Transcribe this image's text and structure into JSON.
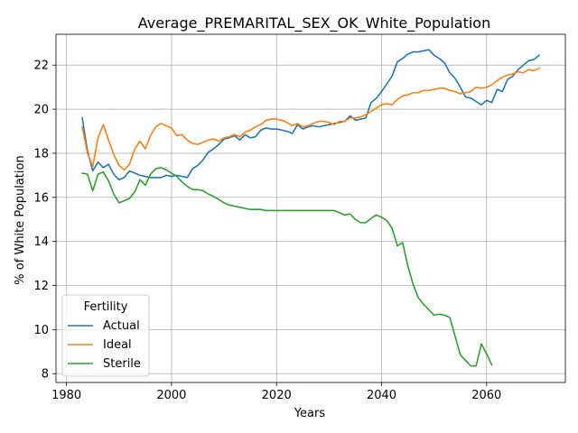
{
  "chart_data": {
    "type": "line",
    "title": "Average_PREMARITAL_SEX_OK_White_Population",
    "xlabel": "Years",
    "ylabel": "% of White Population",
    "xlim": [
      1978,
      2075
    ],
    "ylim": [
      7.6,
      23.4
    ],
    "xticks": [
      1980,
      2000,
      2020,
      2040,
      2060
    ],
    "yticks": [
      8,
      10,
      12,
      14,
      16,
      18,
      20,
      22
    ],
    "grid": true,
    "legend": {
      "title": "Fertility",
      "placement": "lower-left"
    },
    "series": [
      {
        "name": "Actual",
        "color": "#1f77b4",
        "points": [
          [
            1983,
            19.6
          ],
          [
            1984,
            18.1
          ],
          [
            1985,
            17.2
          ],
          [
            1986,
            17.6
          ],
          [
            1987,
            17.35
          ],
          [
            1988,
            17.5
          ],
          [
            1989,
            17.05
          ],
          [
            1990,
            16.8
          ],
          [
            1991,
            16.9
          ],
          [
            1992,
            17.2
          ],
          [
            1993,
            17.1
          ],
          [
            1994,
            17.0
          ],
          [
            1995,
            16.95
          ],
          [
            1996,
            16.9
          ],
          [
            1997,
            16.9
          ],
          [
            1998,
            16.9
          ],
          [
            1999,
            17.0
          ],
          [
            2000,
            16.95
          ],
          [
            2001,
            17.0
          ],
          [
            2002,
            16.95
          ],
          [
            2003,
            16.9
          ],
          [
            2004,
            17.3
          ],
          [
            2005,
            17.45
          ],
          [
            2006,
            17.7
          ],
          [
            2007,
            18.05
          ],
          [
            2008,
            18.2
          ],
          [
            2009,
            18.4
          ],
          [
            2010,
            18.65
          ],
          [
            2011,
            18.7
          ],
          [
            2012,
            18.8
          ],
          [
            2013,
            18.6
          ],
          [
            2014,
            18.85
          ],
          [
            2015,
            18.7
          ],
          [
            2016,
            18.75
          ],
          [
            2017,
            19.05
          ],
          [
            2018,
            19.15
          ],
          [
            2019,
            19.1
          ],
          [
            2020,
            19.1
          ],
          [
            2021,
            19.05
          ],
          [
            2022,
            19.0
          ],
          [
            2023,
            18.9
          ],
          [
            2024,
            19.3
          ],
          [
            2025,
            19.1
          ],
          [
            2026,
            19.2
          ],
          [
            2027,
            19.25
          ],
          [
            2028,
            19.2
          ],
          [
            2029,
            19.25
          ],
          [
            2030,
            19.3
          ],
          [
            2031,
            19.35
          ],
          [
            2032,
            19.4
          ],
          [
            2033,
            19.45
          ],
          [
            2034,
            19.7
          ],
          [
            2035,
            19.5
          ],
          [
            2036,
            19.55
          ],
          [
            2037,
            19.6
          ],
          [
            2038,
            20.3
          ],
          [
            2039,
            20.5
          ],
          [
            2040,
            20.8
          ],
          [
            2041,
            21.15
          ],
          [
            2042,
            21.5
          ],
          [
            2043,
            22.15
          ],
          [
            2044,
            22.3
          ],
          [
            2045,
            22.5
          ],
          [
            2046,
            22.6
          ],
          [
            2047,
            22.6
          ],
          [
            2048,
            22.65
          ],
          [
            2049,
            22.7
          ],
          [
            2050,
            22.45
          ],
          [
            2051,
            22.3
          ],
          [
            2052,
            22.1
          ],
          [
            2053,
            21.65
          ],
          [
            2054,
            21.4
          ],
          [
            2055,
            21.0
          ],
          [
            2056,
            20.55
          ],
          [
            2057,
            20.5
          ],
          [
            2058,
            20.35
          ],
          [
            2059,
            20.2
          ],
          [
            2060,
            20.4
          ],
          [
            2061,
            20.3
          ],
          [
            2062,
            20.9
          ],
          [
            2063,
            20.8
          ],
          [
            2064,
            21.35
          ],
          [
            2065,
            21.5
          ],
          [
            2066,
            21.8
          ],
          [
            2067,
            22.0
          ],
          [
            2068,
            22.2
          ],
          [
            2069,
            22.25
          ],
          [
            2070,
            22.45
          ]
        ]
      },
      {
        "name": "Ideal",
        "color": "#ff7f0e",
        "points": [
          [
            1983,
            19.2
          ],
          [
            1984,
            18.0
          ],
          [
            1985,
            17.4
          ],
          [
            1986,
            18.7
          ],
          [
            1987,
            19.3
          ],
          [
            1988,
            18.6
          ],
          [
            1989,
            17.95
          ],
          [
            1990,
            17.45
          ],
          [
            1991,
            17.25
          ],
          [
            1992,
            17.5
          ],
          [
            1993,
            18.2
          ],
          [
            1994,
            18.55
          ],
          [
            1995,
            18.2
          ],
          [
            1996,
            18.8
          ],
          [
            1997,
            19.2
          ],
          [
            1998,
            19.35
          ],
          [
            1999,
            19.25
          ],
          [
            2000,
            19.15
          ],
          [
            2001,
            18.8
          ],
          [
            2002,
            18.85
          ],
          [
            2003,
            18.6
          ],
          [
            2004,
            18.45
          ],
          [
            2005,
            18.4
          ],
          [
            2006,
            18.5
          ],
          [
            2007,
            18.6
          ],
          [
            2008,
            18.65
          ],
          [
            2009,
            18.55
          ],
          [
            2010,
            18.7
          ],
          [
            2011,
            18.75
          ],
          [
            2012,
            18.85
          ],
          [
            2013,
            18.75
          ],
          [
            2014,
            18.95
          ],
          [
            2015,
            19.05
          ],
          [
            2016,
            19.2
          ],
          [
            2017,
            19.3
          ],
          [
            2018,
            19.5
          ],
          [
            2019,
            19.55
          ],
          [
            2020,
            19.55
          ],
          [
            2021,
            19.5
          ],
          [
            2022,
            19.4
          ],
          [
            2023,
            19.25
          ],
          [
            2024,
            19.35
          ],
          [
            2025,
            19.2
          ],
          [
            2026,
            19.25
          ],
          [
            2027,
            19.35
          ],
          [
            2028,
            19.45
          ],
          [
            2029,
            19.45
          ],
          [
            2030,
            19.4
          ],
          [
            2031,
            19.3
          ],
          [
            2032,
            19.45
          ],
          [
            2033,
            19.45
          ],
          [
            2034,
            19.6
          ],
          [
            2035,
            19.6
          ],
          [
            2036,
            19.65
          ],
          [
            2037,
            19.75
          ],
          [
            2038,
            19.9
          ],
          [
            2039,
            20.05
          ],
          [
            2040,
            20.2
          ],
          [
            2041,
            20.25
          ],
          [
            2042,
            20.2
          ],
          [
            2043,
            20.45
          ],
          [
            2044,
            20.6
          ],
          [
            2045,
            20.65
          ],
          [
            2046,
            20.75
          ],
          [
            2047,
            20.75
          ],
          [
            2048,
            20.85
          ],
          [
            2049,
            20.85
          ],
          [
            2050,
            20.9
          ],
          [
            2051,
            20.95
          ],
          [
            2052,
            20.95
          ],
          [
            2053,
            20.85
          ],
          [
            2054,
            20.8
          ],
          [
            2055,
            20.7
          ],
          [
            2056,
            20.75
          ],
          [
            2057,
            20.8
          ],
          [
            2058,
            21.0
          ],
          [
            2059,
            20.95
          ],
          [
            2060,
            21.0
          ],
          [
            2061,
            21.1
          ],
          [
            2062,
            21.3
          ],
          [
            2063,
            21.45
          ],
          [
            2064,
            21.55
          ],
          [
            2065,
            21.6
          ],
          [
            2066,
            21.7
          ],
          [
            2067,
            21.65
          ],
          [
            2068,
            21.8
          ],
          [
            2069,
            21.75
          ],
          [
            2070,
            21.85
          ]
        ]
      },
      {
        "name": "Sterile",
        "color": "#2ca02c",
        "points": [
          [
            1983,
            17.1
          ],
          [
            1984,
            17.05
          ],
          [
            1985,
            16.3
          ],
          [
            1986,
            17.05
          ],
          [
            1987,
            17.15
          ],
          [
            1988,
            16.75
          ],
          [
            1989,
            16.15
          ],
          [
            1990,
            15.75
          ],
          [
            1991,
            15.85
          ],
          [
            1992,
            15.95
          ],
          [
            1993,
            16.25
          ],
          [
            1994,
            16.8
          ],
          [
            1995,
            16.55
          ],
          [
            1996,
            17.05
          ],
          [
            1997,
            17.3
          ],
          [
            1998,
            17.35
          ],
          [
            1999,
            17.25
          ],
          [
            2000,
            17.1
          ],
          [
            2001,
            16.95
          ],
          [
            2002,
            16.7
          ],
          [
            2003,
            16.5
          ],
          [
            2004,
            16.35
          ],
          [
            2005,
            16.35
          ],
          [
            2006,
            16.3
          ],
          [
            2007,
            16.15
          ],
          [
            2008,
            16.05
          ],
          [
            2009,
            15.9
          ],
          [
            2010,
            15.75
          ],
          [
            2011,
            15.65
          ],
          [
            2012,
            15.6
          ],
          [
            2013,
            15.55
          ],
          [
            2014,
            15.5
          ],
          [
            2015,
            15.45
          ],
          [
            2016,
            15.45
          ],
          [
            2017,
            15.45
          ],
          [
            2018,
            15.4
          ],
          [
            2019,
            15.4
          ],
          [
            2020,
            15.4
          ],
          [
            2021,
            15.4
          ],
          [
            2022,
            15.4
          ],
          [
            2023,
            15.4
          ],
          [
            2024,
            15.4
          ],
          [
            2025,
            15.4
          ],
          [
            2026,
            15.4
          ],
          [
            2027,
            15.4
          ],
          [
            2028,
            15.4
          ],
          [
            2029,
            15.4
          ],
          [
            2030,
            15.4
          ],
          [
            2031,
            15.4
          ],
          [
            2032,
            15.3
          ],
          [
            2033,
            15.2
          ],
          [
            2034,
            15.25
          ],
          [
            2035,
            15.0
          ],
          [
            2036,
            14.85
          ],
          [
            2037,
            14.85
          ],
          [
            2038,
            15.05
          ],
          [
            2039,
            15.2
          ],
          [
            2040,
            15.1
          ],
          [
            2041,
            14.95
          ],
          [
            2042,
            14.6
          ],
          [
            2043,
            13.8
          ],
          [
            2044,
            13.95
          ],
          [
            2045,
            12.9
          ],
          [
            2046,
            12.05
          ],
          [
            2047,
            11.45
          ],
          [
            2048,
            11.15
          ],
          [
            2049,
            10.9
          ],
          [
            2050,
            10.65
          ],
          [
            2051,
            10.7
          ],
          [
            2052,
            10.65
          ],
          [
            2053,
            10.55
          ],
          [
            2054,
            9.7
          ],
          [
            2055,
            8.85
          ],
          [
            2056,
            8.6
          ],
          [
            2057,
            8.35
          ],
          [
            2058,
            8.35
          ],
          [
            2059,
            9.35
          ],
          [
            2060,
            8.9
          ],
          [
            2061,
            8.4
          ]
        ]
      }
    ]
  }
}
